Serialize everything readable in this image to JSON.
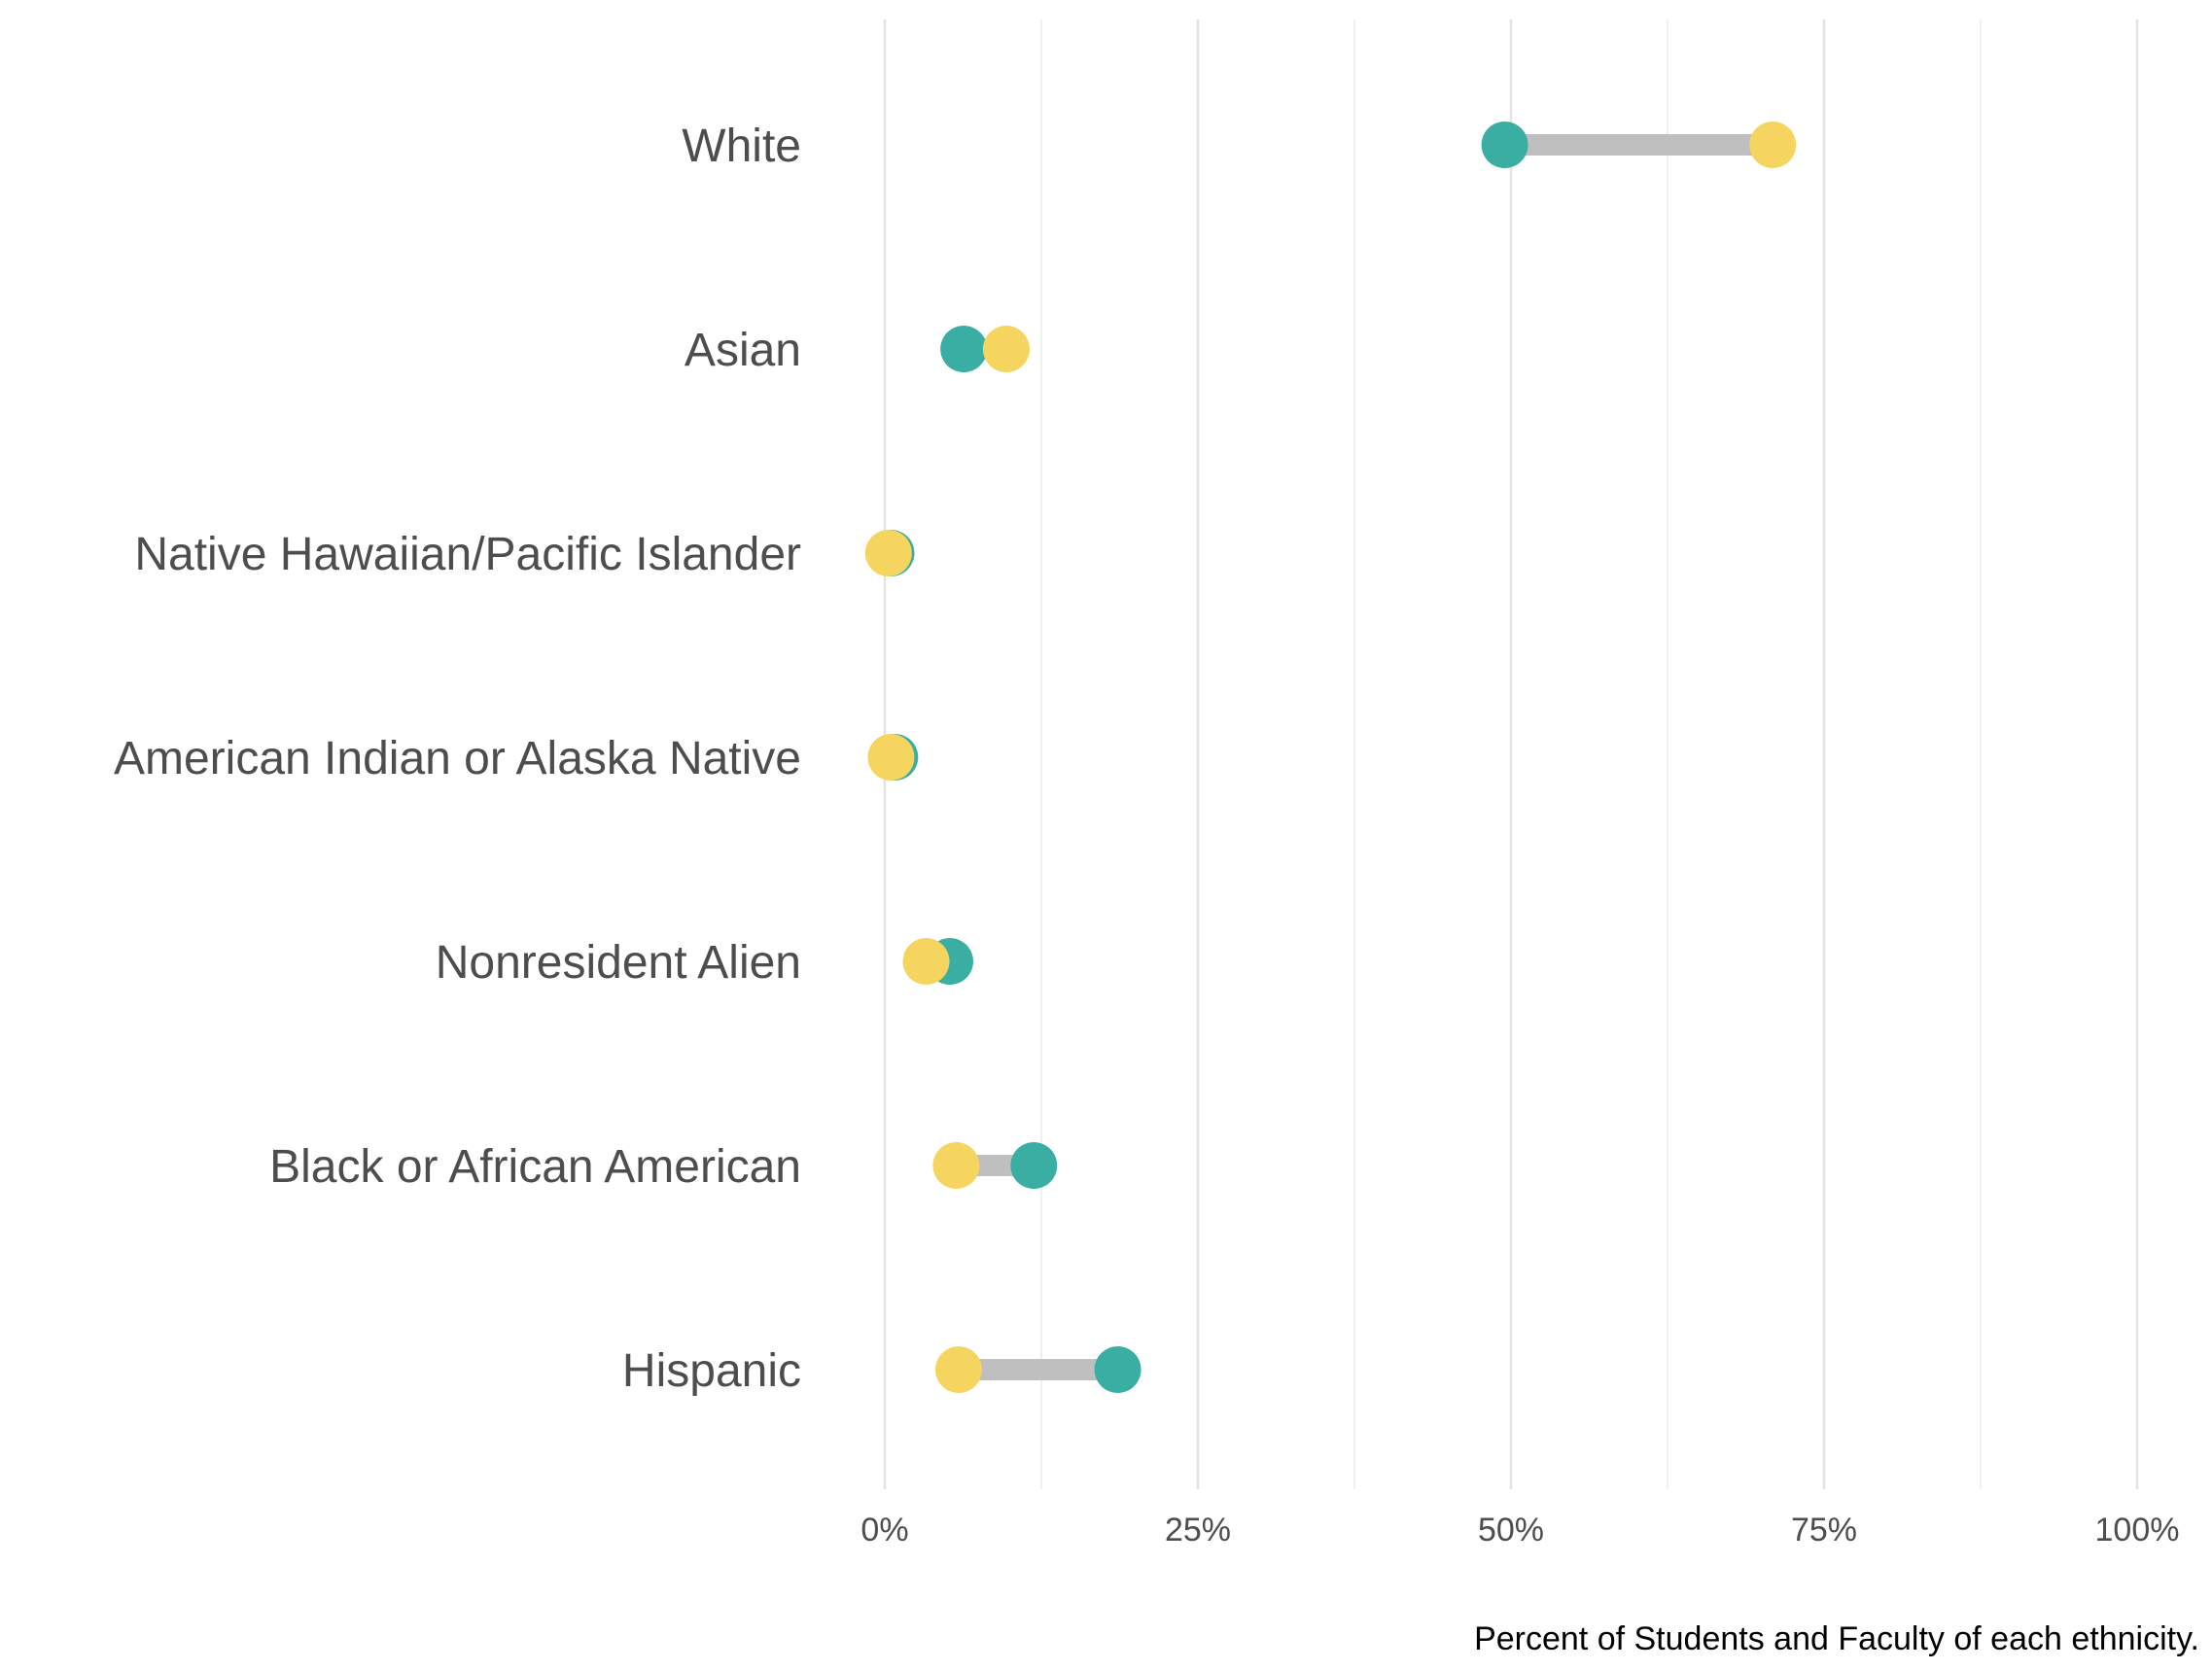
{
  "chart_data": {
    "type": "dumbbell",
    "categories": [
      "White",
      "Asian",
      "Native Hawaiian/Pacific Islander",
      "American Indian or Alaska Native",
      "Nonresident Alien",
      "Black or African American",
      "Hispanic"
    ],
    "series": [
      {
        "color": "#3aaea3",
        "values": [
          49.5,
          6.3,
          0.5,
          0.8,
          5.2,
          11.9,
          18.6
        ]
      },
      {
        "color": "#f5d55f",
        "values": [
          70.9,
          9.7,
          0.3,
          0.5,
          3.3,
          5.7,
          5.9
        ]
      }
    ],
    "segment_color": "#bfbfbf",
    "xlim": [
      0,
      100
    ],
    "x_ticks": [
      0,
      25,
      50,
      75,
      100
    ],
    "x_tick_labels": [
      "0%",
      "25%",
      "50%",
      "75%",
      "100%"
    ],
    "xlabel": "Percent of Students and Faculty of each ethnicity.",
    "grid": "vertical"
  }
}
